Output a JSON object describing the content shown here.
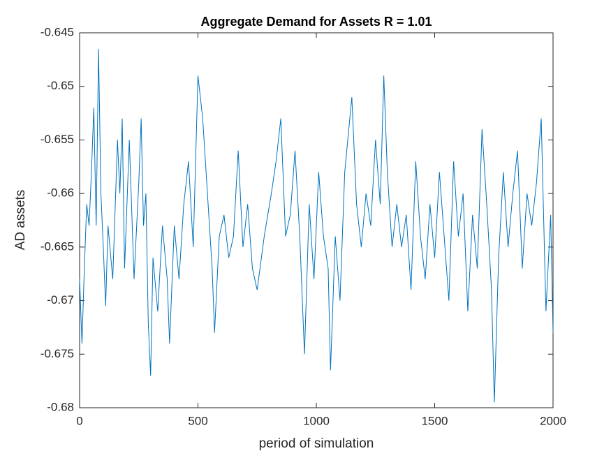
{
  "chart_data": {
    "type": "line",
    "title": "Aggregate Demand for Assets R = 1.01",
    "x_label": "period of simulation",
    "y_label": "AD assets",
    "x": [
      0,
      10,
      20,
      30,
      40,
      50,
      60,
      70,
      80,
      90,
      100,
      110,
      120,
      140,
      160,
      170,
      180,
      190,
      210,
      230,
      250,
      260,
      270,
      280,
      290,
      300,
      310,
      330,
      350,
      370,
      380,
      400,
      420,
      440,
      460,
      480,
      500,
      520,
      540,
      560,
      570,
      590,
      610,
      630,
      650,
      670,
      690,
      710,
      730,
      750,
      780,
      810,
      830,
      850,
      870,
      890,
      910,
      930,
      950,
      970,
      990,
      1010,
      1030,
      1050,
      1060,
      1080,
      1100,
      1120,
      1150,
      1170,
      1190,
      1210,
      1230,
      1250,
      1270,
      1285,
      1300,
      1320,
      1340,
      1360,
      1380,
      1400,
      1420,
      1440,
      1460,
      1480,
      1500,
      1520,
      1540,
      1560,
      1580,
      1600,
      1620,
      1640,
      1660,
      1680,
      1700,
      1720,
      1740,
      1752,
      1770,
      1790,
      1810,
      1830,
      1850,
      1870,
      1890,
      1910,
      1930,
      1950,
      1970,
      1990,
      2000
    ],
    "series": [
      {
        "name": "AD assets",
        "color": "#0072bd",
        "values": [
          -0.668,
          -0.674,
          -0.667,
          -0.661,
          -0.663,
          -0.658,
          -0.652,
          -0.663,
          -0.6465,
          -0.66,
          -0.665,
          -0.6705,
          -0.663,
          -0.668,
          -0.655,
          -0.66,
          -0.653,
          -0.667,
          -0.655,
          -0.668,
          -0.659,
          -0.653,
          -0.663,
          -0.66,
          -0.672,
          -0.677,
          -0.666,
          -0.671,
          -0.663,
          -0.668,
          -0.674,
          -0.663,
          -0.668,
          -0.661,
          -0.657,
          -0.665,
          -0.649,
          -0.653,
          -0.66,
          -0.667,
          -0.673,
          -0.664,
          -0.662,
          -0.666,
          -0.664,
          -0.656,
          -0.665,
          -0.661,
          -0.667,
          -0.669,
          -0.664,
          -0.66,
          -0.657,
          -0.653,
          -0.664,
          -0.662,
          -0.656,
          -0.664,
          -0.675,
          -0.661,
          -0.668,
          -0.658,
          -0.664,
          -0.667,
          -0.6765,
          -0.664,
          -0.67,
          -0.658,
          -0.651,
          -0.661,
          -0.665,
          -0.66,
          -0.663,
          -0.655,
          -0.661,
          -0.649,
          -0.658,
          -0.665,
          -0.661,
          -0.665,
          -0.662,
          -0.669,
          -0.657,
          -0.664,
          -0.668,
          -0.661,
          -0.666,
          -0.658,
          -0.664,
          -0.67,
          -0.657,
          -0.664,
          -0.66,
          -0.671,
          -0.662,
          -0.667,
          -0.654,
          -0.661,
          -0.669,
          -0.6795,
          -0.666,
          -0.658,
          -0.665,
          -0.66,
          -0.656,
          -0.667,
          -0.66,
          -0.663,
          -0.659,
          -0.653,
          -0.671,
          -0.662,
          -0.673
        ]
      }
    ],
    "xlim": [
      0,
      2000
    ],
    "xticks": [
      0,
      500,
      1000,
      1500,
      2000
    ],
    "ylim": [
      -0.68,
      -0.645
    ],
    "yticks": [
      -0.68,
      -0.675,
      -0.67,
      -0.665,
      -0.66,
      -0.655,
      -0.65,
      -0.645
    ],
    "grid": false
  }
}
